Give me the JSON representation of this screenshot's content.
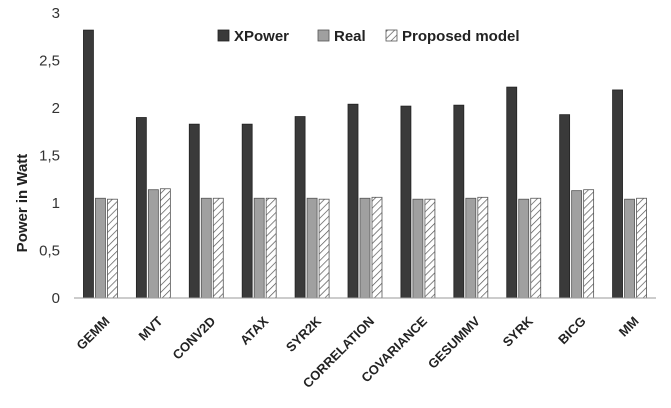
{
  "chart_data": {
    "type": "bar",
    "ylabel": "Power in Watt",
    "ylim": [
      0,
      3
    ],
    "yticks": [
      "0",
      "0,5",
      "1",
      "1,5",
      "2",
      "2,5",
      "3"
    ],
    "yticks_values": [
      0,
      0.5,
      1,
      1.5,
      2,
      2.5,
      3
    ],
    "categories": [
      "GEMM",
      "MVT",
      "CONV2D",
      "ATAX",
      "SYR2K",
      "CORRELATION",
      "COVARIANCE",
      "GESUMMV",
      "SYRK",
      "BICG",
      "MM"
    ],
    "series": [
      {
        "name": "XPower",
        "values": [
          2.82,
          1.9,
          1.83,
          1.83,
          1.91,
          2.04,
          2.02,
          2.03,
          2.22,
          1.93,
          2.19
        ]
      },
      {
        "name": "Real",
        "values": [
          1.05,
          1.14,
          1.05,
          1.05,
          1.05,
          1.05,
          1.04,
          1.05,
          1.04,
          1.13,
          1.04
        ]
      },
      {
        "name": "Proposed model",
        "values": [
          1.04,
          1.15,
          1.05,
          1.05,
          1.04,
          1.06,
          1.04,
          1.06,
          1.05,
          1.14,
          1.05
        ]
      }
    ],
    "grid": false,
    "legend_position": "top-center",
    "colors": {
      "XPower": "#3a3a3a",
      "Real": "#a0a0a0",
      "Proposed model": "hatched-white",
      "axis": "#9a9a9a"
    }
  }
}
